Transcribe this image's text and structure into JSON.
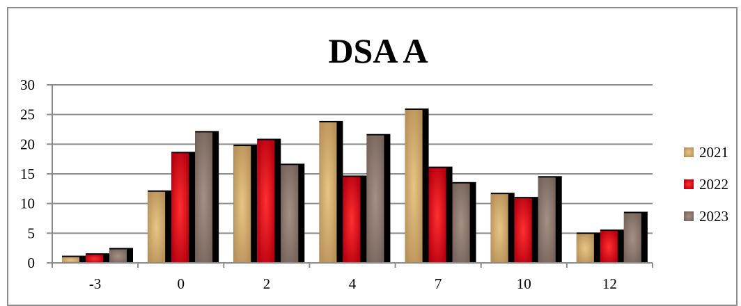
{
  "chart_data": {
    "type": "bar",
    "title": "DSA A",
    "categories": [
      "-3",
      "0",
      "2",
      "4",
      "7",
      "10",
      "12"
    ],
    "series": [
      {
        "name": "2021",
        "values": [
          1.1,
          12.1,
          19.8,
          23.8,
          25.9,
          11.7,
          5.0
        ],
        "color": "#c9a56e"
      },
      {
        "name": "2022",
        "values": [
          1.5,
          18.6,
          20.8,
          14.6,
          16.1,
          11.0,
          5.5
        ],
        "color": "#e01020"
      },
      {
        "name": "2023",
        "values": [
          2.4,
          22.1,
          16.6,
          21.6,
          13.5,
          14.5,
          8.5
        ],
        "color": "#8c7a70"
      }
    ],
    "ylim": [
      0,
      30
    ],
    "yticks": [
      0,
      5,
      10,
      15,
      20,
      25,
      30
    ],
    "grid": true,
    "legend_position": "right",
    "xlabel": "",
    "ylabel": ""
  }
}
